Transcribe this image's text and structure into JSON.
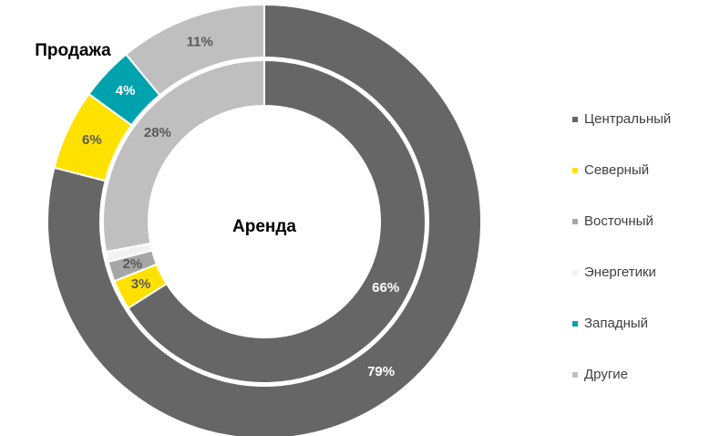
{
  "chart_data": {
    "type": "donut",
    "categories": [
      "Центральный",
      "Северный",
      "Восточный",
      "Энергетики",
      "Западный",
      "Другие"
    ],
    "colors": [
      "#666666",
      "#ffe100",
      "#a6a6a6",
      "#f2f2f2",
      "#00a3ad",
      "#bfbfbf"
    ],
    "series": [
      {
        "name": "Продажа",
        "values": [
          79,
          6,
          0,
          0,
          4,
          11
        ],
        "value_labels": [
          "79%",
          "6%",
          null,
          null,
          "4%",
          "11%"
        ]
      },
      {
        "name": "Аренда",
        "values": [
          66,
          3,
          2,
          1,
          0,
          28
        ],
        "value_labels": [
          "66%",
          "3%",
          "2%",
          null,
          null,
          "28%"
        ]
      }
    ],
    "legend": "right"
  }
}
